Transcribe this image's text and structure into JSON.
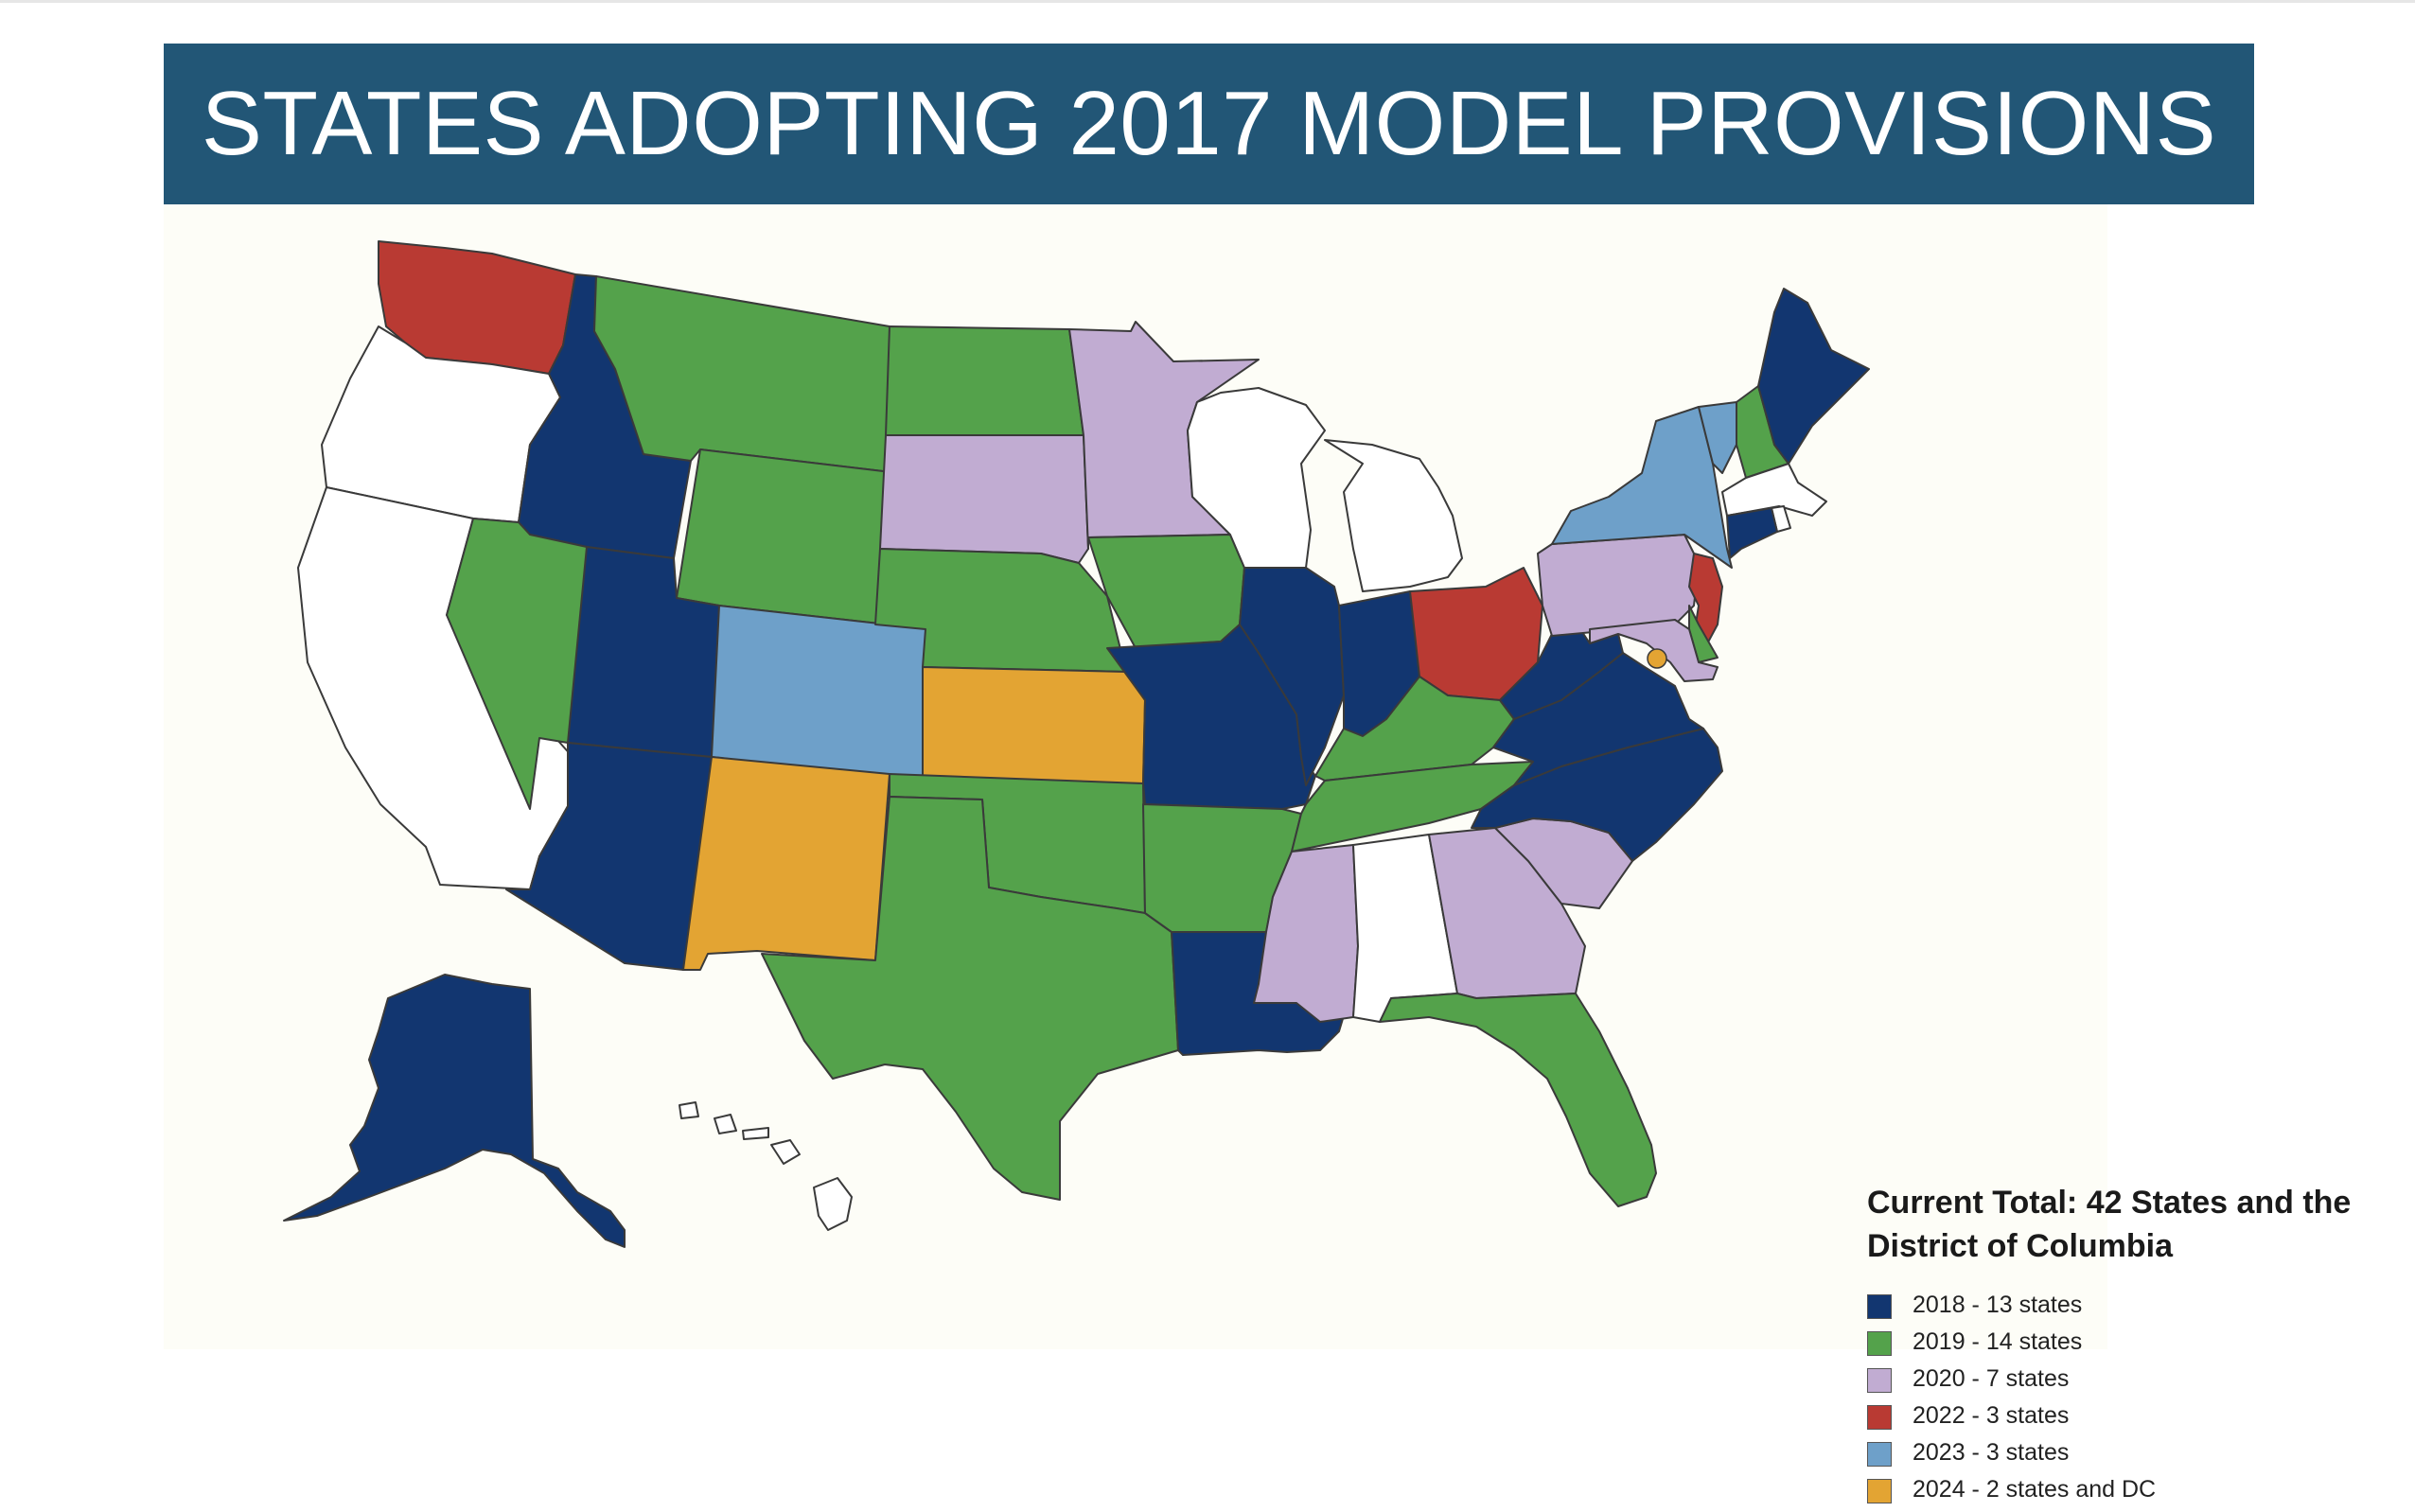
{
  "title": "STATES ADOPTING 2017 MODEL PROVISIONS",
  "legend": {
    "title": "Current Total: 42 States and the District of Columbia",
    "items": [
      {
        "key": "2018",
        "label": "2018 - 13 states",
        "color": "#123670"
      },
      {
        "key": "2019",
        "label": "2019 - 14 states",
        "color": "#54a24b"
      },
      {
        "key": "2020",
        "label": "2020 - 7 states",
        "color": "#c1acd2"
      },
      {
        "key": "2022",
        "label": "2022 - 3 states",
        "color": "#b93a33"
      },
      {
        "key": "2023",
        "label": "2023 - 3 states",
        "color": "#6ea0c9"
      },
      {
        "key": "2024",
        "label": "2024 - 2 states and DC",
        "color": "#e3a433"
      }
    ],
    "none_color": "#ffffff"
  },
  "states": {
    "WA": "2022",
    "OR": "none",
    "CA": "none",
    "ID": "2018",
    "NV": "2019",
    "MT": "2019",
    "WY": "2019",
    "UT": "2018",
    "AZ": "2018",
    "CO": "2023",
    "NM": "2024",
    "ND": "2019",
    "SD": "2020",
    "NE": "2019",
    "KS": "2024",
    "OK": "2019",
    "TX": "2019",
    "MN": "2020",
    "IA": "2019",
    "MO": "2018",
    "AR": "2019",
    "LA": "2018",
    "WI": "none",
    "IL": "2018",
    "MI": "none",
    "IN": "2018",
    "OH": "2022",
    "KY": "2019",
    "TN": "2019",
    "MS": "2020",
    "AL": "none",
    "GA": "2020",
    "FL": "2019",
    "SC": "2020",
    "NC": "2018",
    "VA": "2018",
    "WV": "2018",
    "PA": "2020",
    "NY": "2023",
    "VT": "2023",
    "NH": "2019",
    "ME": "2018",
    "MA": "none",
    "RI": "none",
    "CT": "2018",
    "NJ": "2022",
    "DE": "2019",
    "MD": "2020",
    "DC": "2024",
    "AK": "2018",
    "HI": "none"
  }
}
